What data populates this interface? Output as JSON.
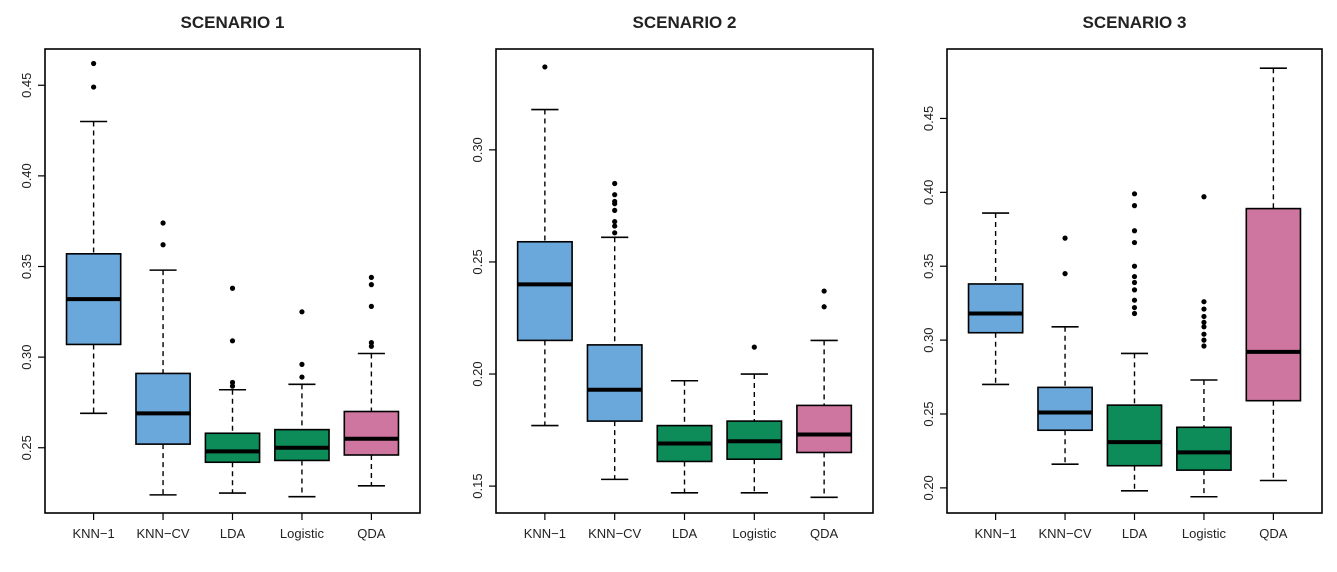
{
  "colors": {
    "KNN-1": "#6aa8dc",
    "KNN-CV": "#6aa8dc",
    "LDA": "#0d8c5a",
    "Logistic": "#0d8c5a",
    "QDA": "#cf76a0",
    "axis": "#000000"
  },
  "chart_data": [
    {
      "type": "box",
      "title": "SCENARIO 1",
      "categories": [
        "KNN−1",
        "KNN−CV",
        "LDA",
        "Logistic",
        "QDA"
      ],
      "yticks": [
        0.25,
        0.3,
        0.35,
        0.4,
        0.45
      ],
      "ytick_labels": [
        "0.25",
        "0.30",
        "0.35",
        "0.40",
        "0.45"
      ],
      "ylim": [
        0.214,
        0.47
      ],
      "grid": false,
      "boxes": [
        {
          "min": 0.269,
          "q1": 0.307,
          "median": 0.332,
          "q3": 0.357,
          "max": 0.43,
          "outliers": [
            0.449,
            0.462
          ]
        },
        {
          "min": 0.224,
          "q1": 0.252,
          "median": 0.269,
          "q3": 0.291,
          "max": 0.348,
          "outliers": [
            0.362,
            0.374
          ]
        },
        {
          "min": 0.225,
          "q1": 0.242,
          "median": 0.248,
          "q3": 0.258,
          "max": 0.282,
          "outliers": [
            0.284,
            0.286,
            0.309,
            0.338
          ]
        },
        {
          "min": 0.223,
          "q1": 0.243,
          "median": 0.25,
          "q3": 0.26,
          "max": 0.285,
          "outliers": [
            0.289,
            0.296,
            0.325
          ]
        },
        {
          "min": 0.229,
          "q1": 0.246,
          "median": 0.255,
          "q3": 0.27,
          "max": 0.302,
          "outliers": [
            0.306,
            0.308,
            0.328,
            0.34,
            0.344
          ]
        }
      ]
    },
    {
      "type": "box",
      "title": "SCENARIO 2",
      "categories": [
        "KNN−1",
        "KNN−CV",
        "LDA",
        "Logistic",
        "QDA"
      ],
      "yticks": [
        0.15,
        0.2,
        0.25,
        0.3
      ],
      "ytick_labels": [
        "0.15",
        "0.20",
        "0.25",
        "0.30"
      ],
      "ylim": [
        0.138,
        0.345
      ],
      "grid": false,
      "boxes": [
        {
          "min": 0.177,
          "q1": 0.215,
          "median": 0.24,
          "q3": 0.259,
          "max": 0.318,
          "outliers": [
            0.337
          ]
        },
        {
          "min": 0.153,
          "q1": 0.179,
          "median": 0.193,
          "q3": 0.213,
          "max": 0.261,
          "outliers": [
            0.263,
            0.266,
            0.268,
            0.273,
            0.276,
            0.277,
            0.28,
            0.285
          ]
        },
        {
          "min": 0.147,
          "q1": 0.161,
          "median": 0.169,
          "q3": 0.177,
          "max": 0.197,
          "outliers": []
        },
        {
          "min": 0.147,
          "q1": 0.162,
          "median": 0.17,
          "q3": 0.179,
          "max": 0.2,
          "outliers": [
            0.212
          ]
        },
        {
          "min": 0.145,
          "q1": 0.165,
          "median": 0.173,
          "q3": 0.186,
          "max": 0.215,
          "outliers": [
            0.23,
            0.237
          ]
        }
      ]
    },
    {
      "type": "box",
      "title": "SCENARIO 3",
      "categories": [
        "KNN−1",
        "KNN−CV",
        "LDA",
        "Logistic",
        "QDA"
      ],
      "yticks": [
        0.2,
        0.25,
        0.3,
        0.35,
        0.4,
        0.45
      ],
      "ytick_labels": [
        "0.20",
        "0.25",
        "0.30",
        "0.35",
        "0.40",
        "0.45"
      ],
      "ylim": [
        0.183,
        0.497
      ],
      "grid": false,
      "boxes": [
        {
          "min": 0.27,
          "q1": 0.305,
          "median": 0.318,
          "q3": 0.338,
          "max": 0.386,
          "outliers": []
        },
        {
          "min": 0.216,
          "q1": 0.239,
          "median": 0.251,
          "q3": 0.268,
          "max": 0.309,
          "outliers": [
            0.345,
            0.369
          ]
        },
        {
          "min": 0.198,
          "q1": 0.215,
          "median": 0.231,
          "q3": 0.256,
          "max": 0.291,
          "outliers": [
            0.318,
            0.322,
            0.327,
            0.334,
            0.339,
            0.343,
            0.35,
            0.366,
            0.374,
            0.391,
            0.399
          ]
        },
        {
          "min": 0.194,
          "q1": 0.212,
          "median": 0.224,
          "q3": 0.241,
          "max": 0.273,
          "outliers": [
            0.296,
            0.3,
            0.304,
            0.309,
            0.312,
            0.316,
            0.321,
            0.326,
            0.397
          ]
        },
        {
          "min": 0.205,
          "q1": 0.259,
          "median": 0.292,
          "q3": 0.389,
          "max": 0.484,
          "outliers": []
        }
      ]
    }
  ]
}
